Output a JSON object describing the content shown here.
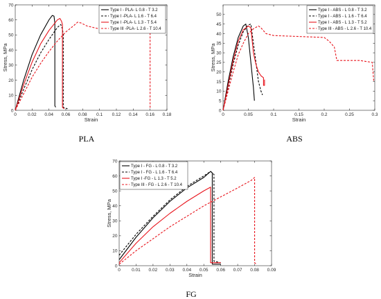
{
  "chart_data": [
    {
      "id": "pla",
      "type": "line",
      "caption": "PLA",
      "xlabel": "Strain",
      "ylabel": "Stress, MPa",
      "xlim": [
        0,
        0.18
      ],
      "ylim": [
        0,
        70
      ],
      "xticks": [
        "0",
        "0.02",
        "0.04",
        "0.06",
        "0.08",
        "0.1",
        "0.12",
        "0.14",
        "0.16",
        "0.18"
      ],
      "yticks": [
        "0",
        "10",
        "20",
        "30",
        "40",
        "50",
        "60",
        "70"
      ],
      "xtick_values": [
        0,
        0.02,
        0.04,
        0.06,
        0.08,
        0.1,
        0.12,
        0.14,
        0.16,
        0.18
      ],
      "ytick_values": [
        0,
        10,
        20,
        30,
        40,
        50,
        60,
        70
      ],
      "legend_position": "top-right",
      "series": [
        {
          "name": "Type I - PLA- L 0.8 - T 3.2",
          "color": "#000000",
          "dash": "solid",
          "x": [
            0,
            0.01,
            0.02,
            0.03,
            0.04,
            0.044,
            0.046,
            0.047,
            0.047,
            0.048
          ],
          "y": [
            0,
            20,
            37,
            50,
            60,
            63,
            62.5,
            58,
            3,
            2
          ]
        },
        {
          "name": "Type I -PLA- L 1.6 - T 6.4",
          "color": "#000000",
          "dash": "dashed",
          "x": [
            0,
            0.01,
            0.02,
            0.03,
            0.04,
            0.05,
            0.054,
            0.056,
            0.057,
            0.057,
            0.062
          ],
          "y": [
            0,
            14,
            27,
            38,
            47,
            55,
            57,
            54,
            50,
            2,
            1
          ]
        },
        {
          "name": "Type I -PLA- L 1.3 - T 5.4",
          "color": "#e8141c",
          "dash": "solid",
          "x": [
            0,
            0.01,
            0.02,
            0.03,
            0.04,
            0.05,
            0.053,
            0.055,
            0.056,
            0.056,
            0.058
          ],
          "y": [
            0,
            17,
            32,
            44,
            53,
            60,
            61,
            59,
            57,
            2,
            1
          ]
        },
        {
          "name": "Type III -PLA- L 2.6 - T 10.4",
          "color": "#e8141c",
          "dash": "dashed",
          "x": [
            0,
            0.01,
            0.02,
            0.03,
            0.04,
            0.05,
            0.06,
            0.07,
            0.074,
            0.078,
            0.085,
            0.1,
            0.12,
            0.14,
            0.16,
            0.16,
            0.161
          ],
          "y": [
            0,
            11,
            22,
            31,
            39,
            46,
            52,
            56.5,
            58.5,
            58,
            56,
            54,
            53,
            52.5,
            52,
            2,
            1
          ]
        }
      ]
    },
    {
      "id": "abs",
      "type": "line",
      "caption": "ABS",
      "xlabel": "Strain",
      "ylabel": "Stress, MPa",
      "xlim": [
        0,
        0.3
      ],
      "ylim": [
        0,
        55
      ],
      "xticks": [
        "0",
        "0.05",
        "0.1",
        "0.15",
        "0.2",
        "0.25",
        "0.3"
      ],
      "yticks": [
        "0",
        "5",
        "10",
        "15",
        "20",
        "25",
        "30",
        "35",
        "40",
        "45",
        "50"
      ],
      "xtick_values": [
        0,
        0.05,
        0.1,
        0.15,
        0.2,
        0.25,
        0.3
      ],
      "ytick_values": [
        0,
        5,
        10,
        15,
        20,
        25,
        30,
        35,
        40,
        45,
        50
      ],
      "legend_position": "top-right",
      "series": [
        {
          "name": "Type I - ABS - L 0.8 - T 3.2",
          "color": "#000000",
          "dash": "solid",
          "x": [
            0,
            0.01,
            0.02,
            0.03,
            0.04,
            0.045,
            0.05,
            0.055,
            0.06,
            0.062
          ],
          "y": [
            0,
            15,
            28,
            38,
            44,
            45,
            38,
            25,
            12,
            5
          ]
        },
        {
          "name": "Type I - ABS - L 1.6 - T 6.4",
          "color": "#000000",
          "dash": "dashed",
          "x": [
            0,
            0.01,
            0.02,
            0.03,
            0.04,
            0.05,
            0.055,
            0.06,
            0.065,
            0.07,
            0.075,
            0.078
          ],
          "y": [
            0,
            12,
            24,
            34,
            41,
            44.5,
            45,
            35,
            25,
            15,
            10,
            8
          ]
        },
        {
          "name": "Type I - ABS - L 1.3 - T 5.2",
          "color": "#e8141c",
          "dash": "solid",
          "x": [
            0,
            0.01,
            0.02,
            0.03,
            0.04,
            0.05,
            0.055,
            0.06,
            0.065,
            0.07,
            0.075,
            0.08,
            0.08,
            0.082,
            0.082
          ],
          "y": [
            0,
            13,
            26,
            36,
            42,
            44,
            43,
            30,
            24,
            20,
            18,
            17,
            13,
            13,
            16
          ]
        },
        {
          "name": "Type III - ABS - L 2.6 - T 10.4",
          "color": "#e8141c",
          "dash": "dashed",
          "x": [
            0,
            0.01,
            0.02,
            0.03,
            0.04,
            0.05,
            0.06,
            0.07,
            0.075,
            0.085,
            0.1,
            0.15,
            0.2,
            0.21,
            0.22,
            0.225,
            0.24,
            0.27,
            0.295,
            0.298
          ],
          "y": [
            0,
            10,
            20,
            29,
            35,
            40,
            42.5,
            44,
            43,
            40,
            39,
            38.5,
            38,
            36,
            33,
            26,
            26,
            26,
            25,
            15
          ]
        }
      ]
    },
    {
      "id": "fg",
      "type": "line",
      "caption": "FG",
      "xlabel": "Strain",
      "ylabel": "Stress, MPa",
      "xlim": [
        0,
        0.09
      ],
      "ylim": [
        0,
        70
      ],
      "xticks": [
        "0",
        "0.01",
        "0.02",
        "0.03",
        "0.04",
        "0.05",
        "0.06",
        "0.07",
        "0.08",
        "0.09"
      ],
      "yticks": [
        "0",
        "10",
        "20",
        "30",
        "40",
        "50",
        "60",
        "70"
      ],
      "xtick_values": [
        0,
        0.01,
        0.02,
        0.03,
        0.04,
        0.05,
        0.06,
        0.07,
        0.08,
        0.09
      ],
      "ytick_values": [
        0,
        10,
        20,
        30,
        40,
        50,
        60,
        70
      ],
      "legend_position": "top-left",
      "series": [
        {
          "name": "Type I - FG - L 0.8 - T 3.2",
          "color": "#000000",
          "dash": "solid",
          "x": [
            0,
            0.01,
            0.02,
            0.03,
            0.04,
            0.05,
            0.054,
            0.055,
            0.055,
            0.06
          ],
          "y": [
            4,
            19,
            32,
            43,
            52,
            59,
            63,
            62,
            1,
            1
          ]
        },
        {
          "name": "Type I - FG - L 1.6 - T 6.4",
          "color": "#000000",
          "dash": "dashed",
          "x": [
            0,
            0.01,
            0.02,
            0.03,
            0.04,
            0.05,
            0.054,
            0.056,
            0.056,
            0.06
          ],
          "y": [
            7,
            21,
            33,
            44,
            53,
            60,
            63,
            61,
            3,
            2
          ]
        },
        {
          "name": "Type I -FG - L 1.3 - T 5.2",
          "color": "#e8141c",
          "dash": "solid",
          "x": [
            0,
            0.01,
            0.02,
            0.03,
            0.04,
            0.05,
            0.054,
            0.054,
            0.06
          ],
          "y": [
            2,
            15,
            26,
            35,
            43,
            50,
            52.5,
            2,
            2
          ]
        },
        {
          "name": "Type III - FG - L 2.6 - T 10.4",
          "color": "#e8141c",
          "dash": "dashed",
          "x": [
            0,
            0.01,
            0.02,
            0.03,
            0.04,
            0.05,
            0.06,
            0.07,
            0.078,
            0.08,
            0.08,
            0.081
          ],
          "y": [
            1,
            10,
            18,
            26,
            33,
            40,
            46,
            52,
            57,
            59,
            2,
            1
          ]
        }
      ]
    }
  ]
}
